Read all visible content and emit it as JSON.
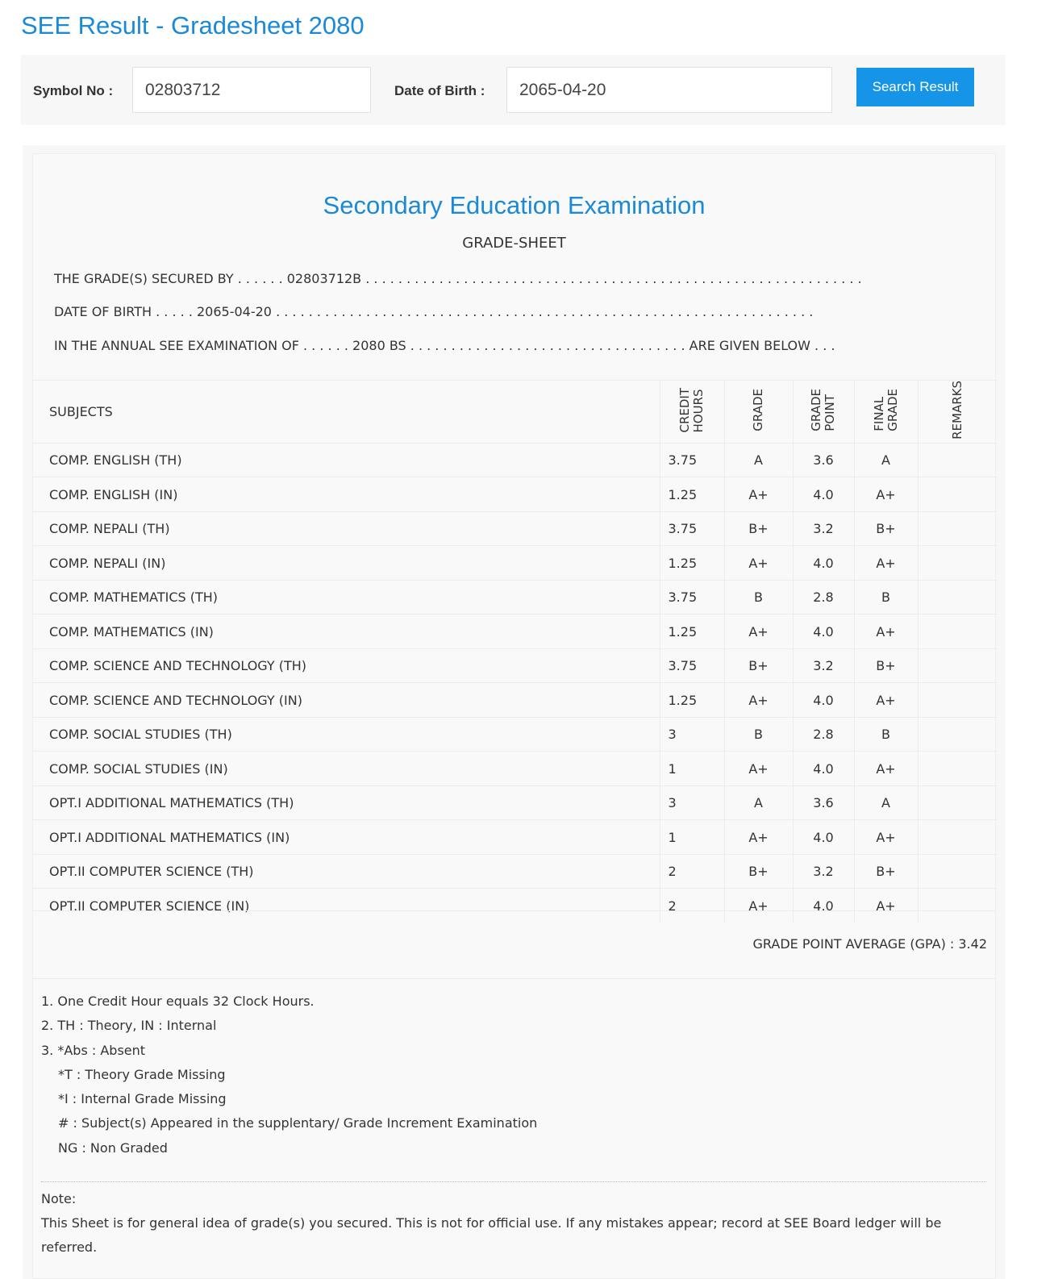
{
  "page": {
    "title": "SEE Result - Gradesheet 2080"
  },
  "search": {
    "symbol_label": "Symbol No :",
    "symbol_value": "02803712",
    "dob_label": "Date of Birth :",
    "dob_value": "2065-04-20",
    "button": "Search Result"
  },
  "sheet": {
    "heading": "Secondary Education Examination",
    "subheading": "GRADE-SHEET",
    "secured_by": "THE GRADE(S) SECURED BY . . . . . . 02803712B . . . . . . . . . . . . . . . . . . . . . . . . . . . . . . . . . . . . . . . . . . . . . . . . . . . . . . . . . . . . .",
    "dob": "DATE OF BIRTH . . . . . 2065-04-20 . . . . . . . . . . . . . . . . . . . . . . . . . . . . . . . . . . . . . . . . . . . . . . . . . . . . . . . . . . . . . . . . . .",
    "exam": "IN THE ANNUAL SEE EXAMINATION OF . . . . . . 2080 BS . . . . . . . . . . . . . . . . . . . . . . . . . . . . . . . . . . ARE GIVEN BELOW . . .",
    "columns": {
      "subjects": "SUBJECTS",
      "credit_1": "CREDIT",
      "credit_2": "HOURS",
      "grade": "GRADE",
      "gp_1": "GRADE",
      "gp_2": "POINT",
      "fg_1": "FINAL",
      "fg_2": "GRADE",
      "remarks": "REMARKS"
    },
    "rows": [
      [
        "COMP. ENGLISH (TH)",
        "3.75",
        "A",
        "3.6",
        "A"
      ],
      [
        "COMP. ENGLISH (IN)",
        "1.25",
        "A+",
        "4.0",
        "A+"
      ],
      [
        "COMP. NEPALI (TH)",
        "3.75",
        "B+",
        "3.2",
        "B+"
      ],
      [
        "COMP. NEPALI (IN)",
        "1.25",
        "A+",
        "4.0",
        "A+"
      ],
      [
        "COMP. MATHEMATICS (TH)",
        "3.75",
        "B",
        "2.8",
        "B"
      ],
      [
        "COMP. MATHEMATICS (IN)",
        "1.25",
        "A+",
        "4.0",
        "A+"
      ],
      [
        "COMP. SCIENCE AND TECHNOLOGY (TH)",
        "3.75",
        "B+",
        "3.2",
        "B+"
      ],
      [
        "COMP. SCIENCE AND TECHNOLOGY (IN)",
        "1.25",
        "A+",
        "4.0",
        "A+"
      ],
      [
        "COMP. SOCIAL STUDIES (TH)",
        "3",
        "B",
        "2.8",
        "B"
      ],
      [
        "COMP. SOCIAL STUDIES (IN)",
        "1",
        "A+",
        "4.0",
        "A+"
      ],
      [
        "OPT.I ADDITIONAL MATHEMATICS (TH)",
        "3",
        "A",
        "3.6",
        "A"
      ],
      [
        "OPT.I ADDITIONAL MATHEMATICS (IN)",
        "1",
        "A+",
        "4.0",
        "A+"
      ],
      [
        "OPT.II COMPUTER SCIENCE (TH)",
        "2",
        "B+",
        "3.2",
        "B+"
      ],
      [
        "OPT.II COMPUTER SCIENCE (IN)",
        "2",
        "A+",
        "4.0",
        "A+"
      ]
    ],
    "gpa": "GRADE POINT AVERAGE (GPA) : 3.42",
    "notes": [
      "1. One Credit Hour equals 32 Clock Hours.",
      "2. TH : Theory, IN : Internal",
      "3. *Abs : Absent",
      "*T : Theory Grade Missing",
      "*I : Internal Grade Missing",
      "# : Subject(s) Appeared in the supplentary/ Grade Increment Examination",
      "NG : Non Graded"
    ],
    "note_title": "Note:",
    "note_text": "This Sheet is for general idea of grade(s) you secured. This is not for official use. If any mistakes appear; record at SEE Board ledger will be referred."
  }
}
